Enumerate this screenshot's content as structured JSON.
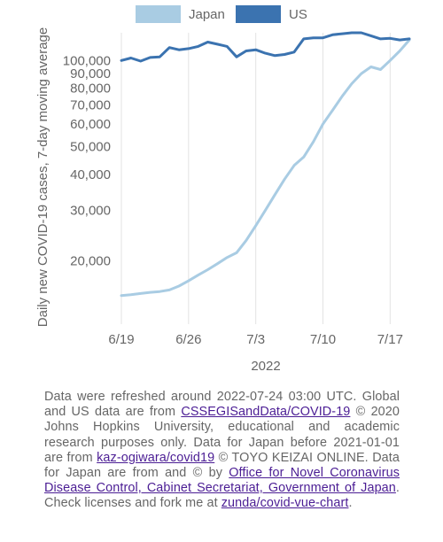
{
  "chart_data": {
    "type": "line",
    "ylabel": "Daily new COVID-19 cases, 7-day moving average",
    "xlabel": "2022",
    "yscale": "log",
    "ylim": [
      12000,
      125000
    ],
    "y_ticks": [
      {
        "value": 20000,
        "label": "20,000"
      },
      {
        "value": 30000,
        "label": "30,000"
      },
      {
        "value": 40000,
        "label": "40,000"
      },
      {
        "value": 50000,
        "label": "50,000"
      },
      {
        "value": 60000,
        "label": "60,000"
      },
      {
        "value": 70000,
        "label": "70,000"
      },
      {
        "value": 80000,
        "label": "80,000"
      },
      {
        "value": 90000,
        "label": "90,000"
      },
      {
        "value": 100000,
        "label": "100,000"
      }
    ],
    "x_ticks": [
      {
        "day": 0,
        "label": "6/19"
      },
      {
        "day": 7,
        "label": "6/26"
      },
      {
        "day": 14,
        "label": "7/3"
      },
      {
        "day": 21,
        "label": "7/10"
      },
      {
        "day": 28,
        "label": "7/17"
      }
    ],
    "x": [
      "2022-06-19",
      "2022-06-20",
      "2022-06-21",
      "2022-06-22",
      "2022-06-23",
      "2022-06-24",
      "2022-06-25",
      "2022-06-26",
      "2022-06-27",
      "2022-06-28",
      "2022-06-29",
      "2022-06-30",
      "2022-07-01",
      "2022-07-02",
      "2022-07-03",
      "2022-07-04",
      "2022-07-05",
      "2022-07-06",
      "2022-07-07",
      "2022-07-08",
      "2022-07-09",
      "2022-07-10",
      "2022-07-11",
      "2022-07-12",
      "2022-07-13",
      "2022-07-14",
      "2022-07-15",
      "2022-07-16",
      "2022-07-17",
      "2022-07-18",
      "2022-07-19"
    ],
    "series": [
      {
        "name": "Japan",
        "color": "#a9cce3",
        "values": [
          15100,
          15200,
          15350,
          15500,
          15600,
          15800,
          16300,
          17000,
          17800,
          18600,
          19500,
          20500,
          21300,
          23500,
          26500,
          30000,
          34000,
          38500,
          43000,
          46000,
          52000,
          60000,
          67000,
          75000,
          83000,
          90000,
          95000,
          93000,
          100000,
          108000,
          118000
        ]
      },
      {
        "name": "US",
        "color": "#3b73b0",
        "values": [
          100000,
          102000,
          99500,
          102500,
          103000,
          111000,
          109000,
          110000,
          112000,
          116000,
          114000,
          112000,
          103000,
          108000,
          109000,
          106000,
          104000,
          105000,
          107000,
          119000,
          120000,
          120000,
          123000,
          124000,
          125000,
          125000,
          122000,
          119000,
          119500,
          118000,
          119000
        ]
      }
    ],
    "legend": "top",
    "grid": true
  },
  "note": {
    "text1": "Data were refreshed around 2022-07-24 03:00 UTC. Global and US data are from ",
    "link1": "CSSEGISandData/COVID-19",
    "text2": " © 2020 Johns Hopkins University, educational and academic research purposes only. Data for Japan before 2021-01-01 are from ",
    "link2": "kaz-ogiwara/covid19",
    "text3": " © TOYO KEIZAI ONLINE. Data for Japan are from and © by ",
    "link3": "Office for Novel Coronavirus Disease Control, Cabinet Secretariat, Government of Japan",
    "text4": ". Check licenses and fork me at ",
    "link4": "zunda/covid-vue-chart",
    "text5": "."
  }
}
